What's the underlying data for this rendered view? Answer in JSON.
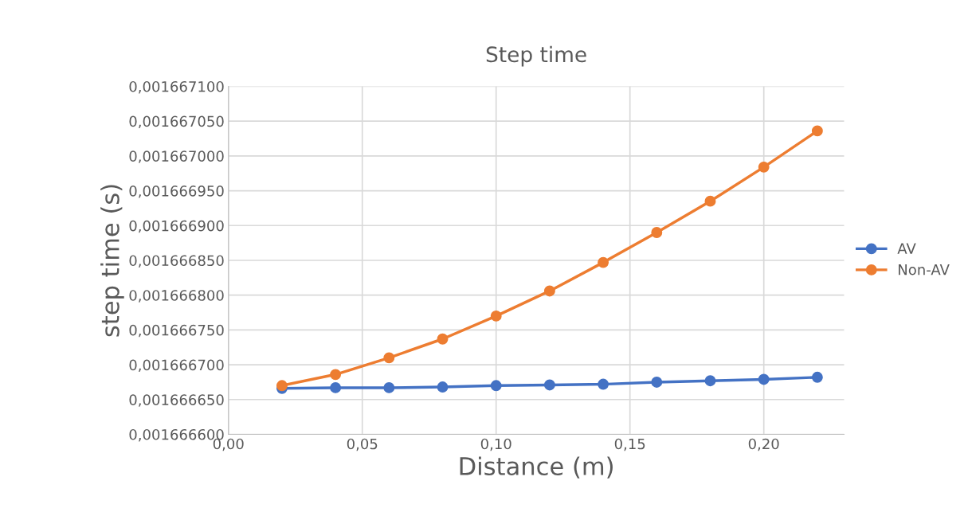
{
  "chart_data": {
    "type": "line",
    "title": "Step time",
    "xlabel": "Distance (m)",
    "ylabel": "step time (s)",
    "x": [
      0.02,
      0.04,
      0.06,
      0.08,
      0.1,
      0.12,
      0.14,
      0.16,
      0.18,
      0.2,
      0.22
    ],
    "series": [
      {
        "name": "AV",
        "color": "#4472c4",
        "values": [
          0.001666666,
          0.001666667,
          0.001666667,
          0.001666668,
          0.00166667,
          0.001666671,
          0.001666672,
          0.001666675,
          0.001666677,
          0.001666679,
          0.001666682
        ]
      },
      {
        "name": "Non-AV",
        "color": "#ed7d31",
        "values": [
          0.00166667,
          0.001666686,
          0.00166671,
          0.001666737,
          0.00166677,
          0.001666806,
          0.001666847,
          0.00166689,
          0.001666935,
          0.001666984,
          0.001667036
        ]
      }
    ],
    "xlim": [
      0,
      0.23
    ],
    "xticks": [
      {
        "value": 0,
        "label": "0,00"
      },
      {
        "value": 0.05,
        "label": "0,05"
      },
      {
        "value": 0.1,
        "label": "0,10"
      },
      {
        "value": 0.15,
        "label": "0,15"
      },
      {
        "value": 0.2,
        "label": "0,20"
      }
    ],
    "ylim": [
      0.0016666,
      0.0016671
    ],
    "yticks": [
      {
        "value": 0.0016666,
        "label": "0,001666600"
      },
      {
        "value": 0.00166665,
        "label": "0,001666650"
      },
      {
        "value": 0.0016667,
        "label": "0,001666700"
      },
      {
        "value": 0.00166675,
        "label": "0,001666750"
      },
      {
        "value": 0.0016668,
        "label": "0,001666800"
      },
      {
        "value": 0.00166685,
        "label": "0,001666850"
      },
      {
        "value": 0.0016669,
        "label": "0,001666900"
      },
      {
        "value": 0.00166695,
        "label": "0,001666950"
      },
      {
        "value": 0.001667,
        "label": "0,001667000"
      },
      {
        "value": 0.00166705,
        "label": "0,001667050"
      },
      {
        "value": 0.0016671,
        "label": "0,001667100"
      }
    ],
    "grid": true,
    "legend": "right",
    "marker": "circle",
    "line_style": "solid"
  }
}
